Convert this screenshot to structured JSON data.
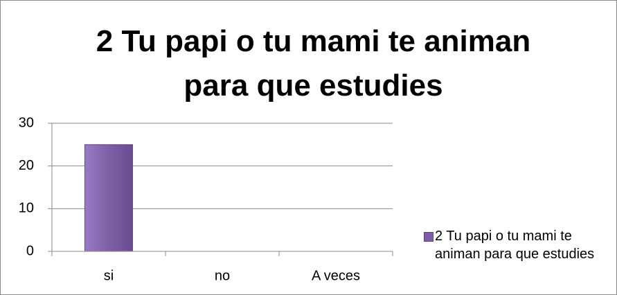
{
  "chart_data": {
    "type": "bar",
    "title": "2 Tu papi o tu mami te animan para que estudies",
    "categories": [
      "si",
      "no",
      "A veces"
    ],
    "series": [
      {
        "name": "2 Tu papi o tu mami te animan para que estudies",
        "color": "#7e5fa6",
        "values": [
          25,
          0,
          0
        ]
      }
    ],
    "ylim": [
      0,
      30
    ],
    "yticks": [
      0,
      10,
      20,
      30
    ],
    "grid": true,
    "legend": "right"
  }
}
